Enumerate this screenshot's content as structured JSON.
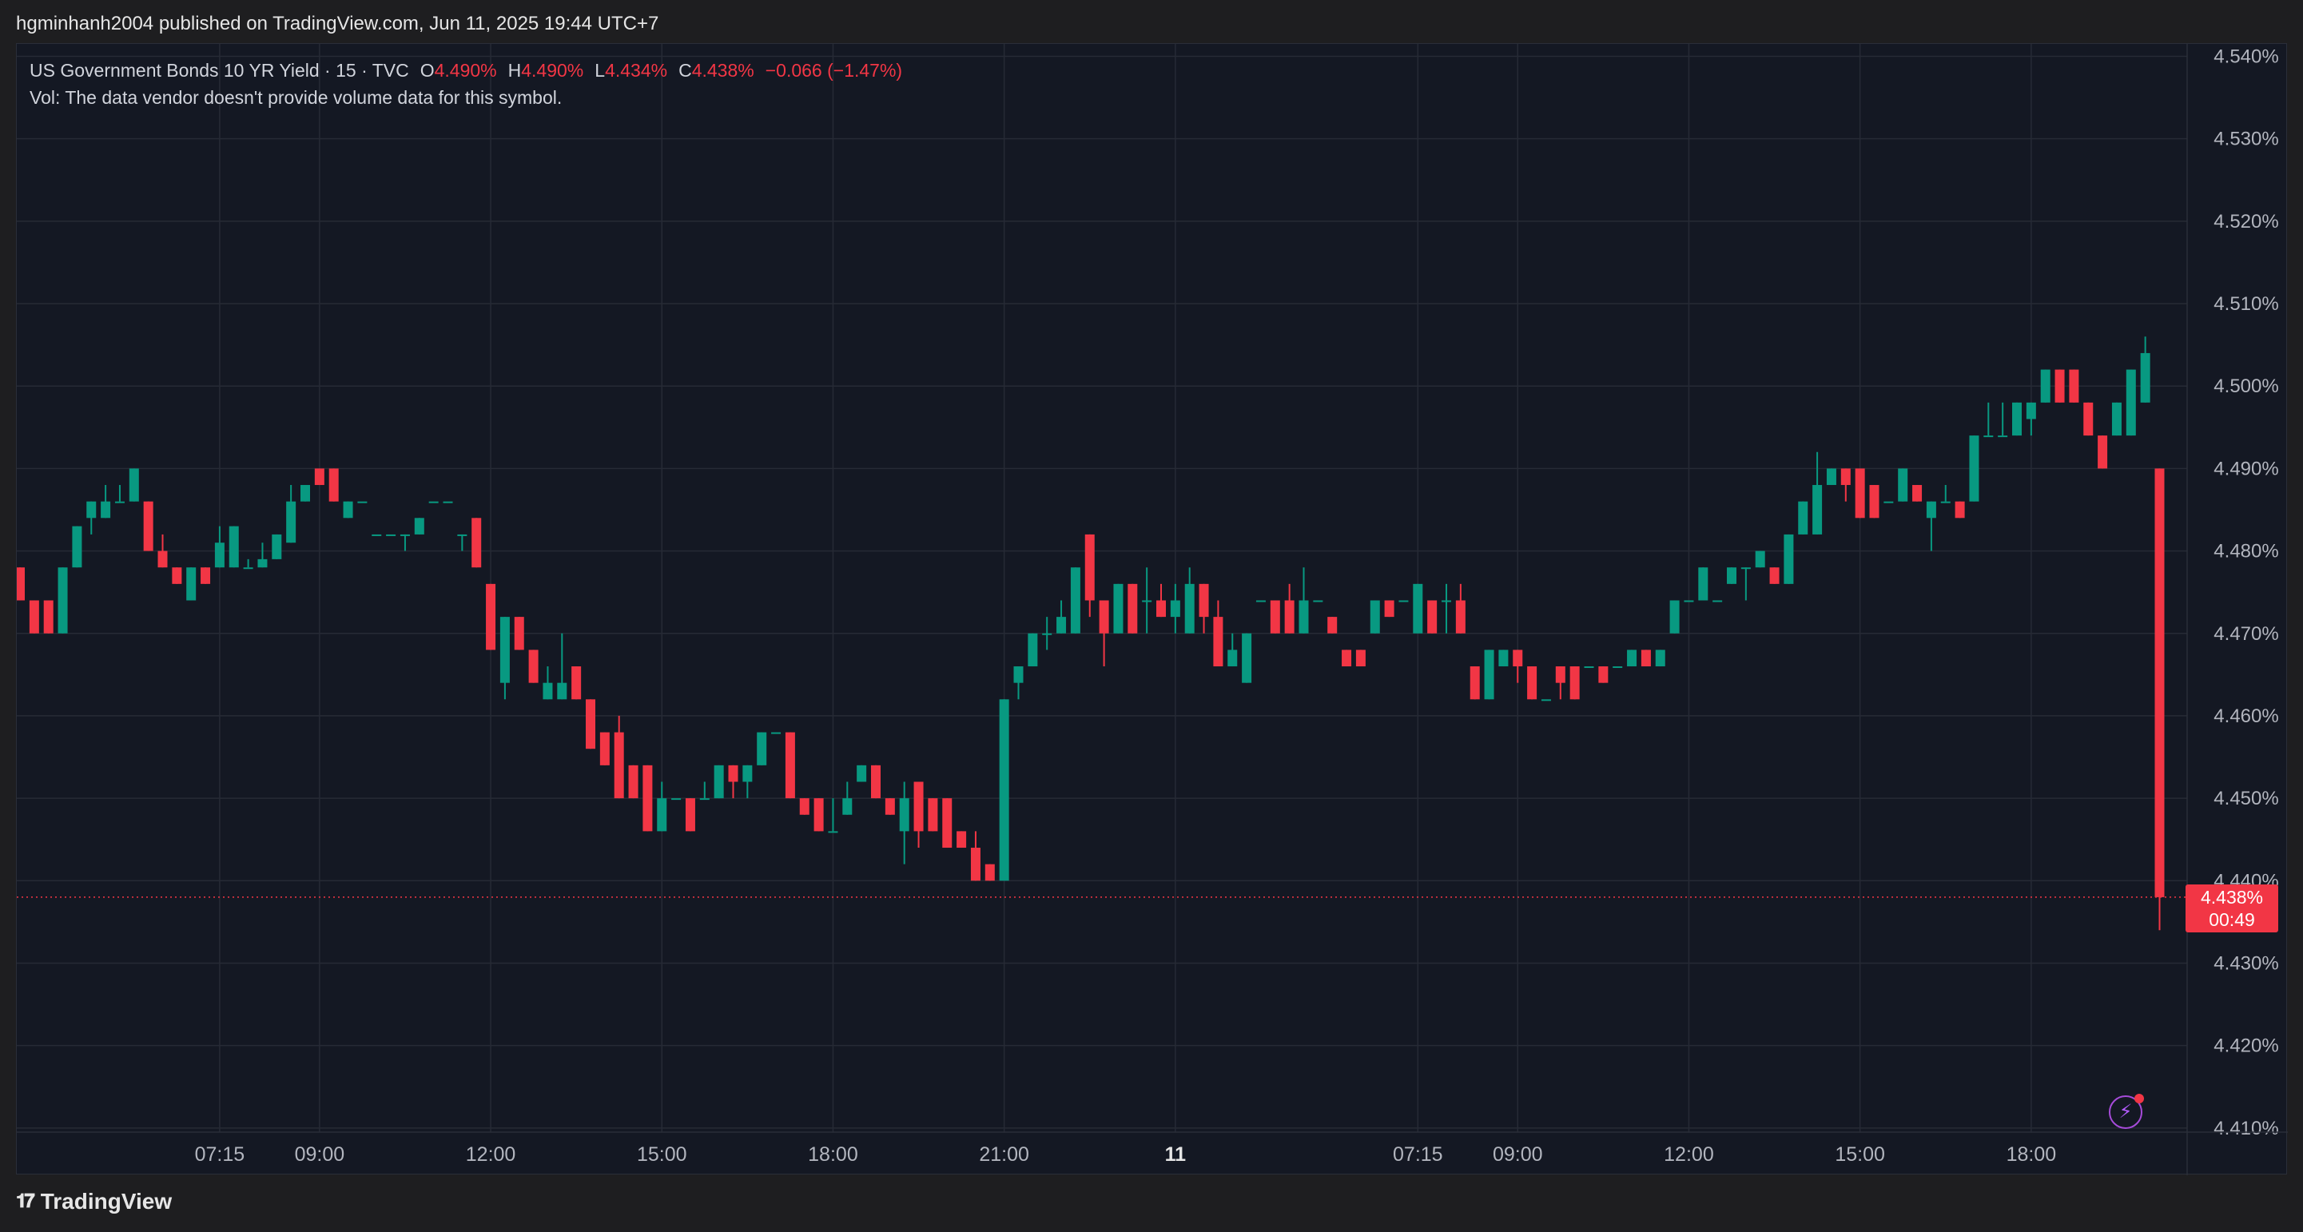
{
  "header": {
    "published": "hgminhanh2004 published on TradingView.com, Jun 11, 2025 19:44 UTC+7"
  },
  "legend": {
    "symbol": "US Government Bonds 10 YR Yield · 15 · TVC",
    "open_label": "O",
    "open": "4.490%",
    "high_label": "H",
    "high": "4.490%",
    "low_label": "L",
    "low": "4.434%",
    "close_label": "C",
    "close": "4.438%",
    "change": "−0.066 (−1.47%)",
    "vol_note": "Vol: The data vendor doesn't provide volume data for this symbol."
  },
  "last_price": {
    "value": "4.438%",
    "countdown": "00:49",
    "price": 4.438
  },
  "footer": {
    "brand": "TradingView"
  },
  "icons": {
    "bolt": "lightning-bolt-icon",
    "logo": "tradingview-logo-icon"
  },
  "colors": {
    "up": "#089981",
    "down": "#f23645",
    "grid": "#262a35",
    "background": "#141823",
    "axis_text": "#b2b5be"
  },
  "chart_data": {
    "type": "candlestick",
    "y_range": [
      4.4095,
      4.5415
    ],
    "y_ticks": [
      {
        "v": 4.54,
        "label": "4.540%"
      },
      {
        "v": 4.53,
        "label": "4.530%"
      },
      {
        "v": 4.52,
        "label": "4.520%"
      },
      {
        "v": 4.51,
        "label": "4.510%"
      },
      {
        "v": 4.5,
        "label": "4.500%"
      },
      {
        "v": 4.49,
        "label": "4.490%"
      },
      {
        "v": 4.48,
        "label": "4.480%"
      },
      {
        "v": 4.47,
        "label": "4.470%"
      },
      {
        "v": 4.46,
        "label": "4.460%"
      },
      {
        "v": 4.45,
        "label": "4.450%"
      },
      {
        "v": 4.44,
        "label": "4.440%"
      },
      {
        "v": 4.43,
        "label": "4.430%"
      },
      {
        "v": 4.42,
        "label": "4.420%"
      },
      {
        "v": 4.41,
        "label": "4.410%"
      }
    ],
    "x_ticks": [
      {
        "i": 14,
        "label": "07:15",
        "bold": false
      },
      {
        "i": 21,
        "label": "09:00",
        "bold": false
      },
      {
        "i": 33,
        "label": "12:00",
        "bold": false
      },
      {
        "i": 45,
        "label": "15:00",
        "bold": false
      },
      {
        "i": 57,
        "label": "18:00",
        "bold": false
      },
      {
        "i": 69,
        "label": "21:00",
        "bold": false
      },
      {
        "i": 81,
        "label": "11",
        "bold": true
      },
      {
        "i": 98,
        "label": "07:15",
        "bold": false
      },
      {
        "i": 105,
        "label": "09:00",
        "bold": false
      },
      {
        "i": 117,
        "label": "12:00",
        "bold": false
      },
      {
        "i": 129,
        "label": "15:00",
        "bold": false
      },
      {
        "i": 141,
        "label": "18:00",
        "bold": false
      }
    ],
    "candles": [
      {
        "o": 4.478,
        "h": 4.478,
        "l": 4.474,
        "c": 4.474
      },
      {
        "o": 4.474,
        "h": 4.474,
        "l": 4.47,
        "c": 4.47
      },
      {
        "o": 4.474,
        "h": 4.474,
        "l": 4.47,
        "c": 4.47
      },
      {
        "o": 4.47,
        "h": 4.478,
        "l": 4.47,
        "c": 4.478
      },
      {
        "o": 4.478,
        "h": 4.483,
        "l": 4.478,
        "c": 4.483
      },
      {
        "o": 4.484,
        "h": 4.486,
        "l": 4.482,
        "c": 4.486
      },
      {
        "o": 4.484,
        "h": 4.488,
        "l": 4.484,
        "c": 4.486
      },
      {
        "o": 4.486,
        "h": 4.488,
        "l": 4.486,
        "c": 4.486
      },
      {
        "o": 4.486,
        "h": 4.49,
        "l": 4.486,
        "c": 4.49
      },
      {
        "o": 4.486,
        "h": 4.486,
        "l": 4.48,
        "c": 4.48
      },
      {
        "o": 4.48,
        "h": 4.482,
        "l": 4.478,
        "c": 4.478
      },
      {
        "o": 4.478,
        "h": 4.478,
        "l": 4.476,
        "c": 4.476
      },
      {
        "o": 4.474,
        "h": 4.478,
        "l": 4.474,
        "c": 4.478
      },
      {
        "o": 4.478,
        "h": 4.478,
        "l": 4.476,
        "c": 4.476
      },
      {
        "o": 4.478,
        "h": 4.483,
        "l": 4.478,
        "c": 4.481
      },
      {
        "o": 4.478,
        "h": 4.483,
        "l": 4.478,
        "c": 4.483
      },
      {
        "o": 4.478,
        "h": 4.479,
        "l": 4.478,
        "c": 4.478
      },
      {
        "o": 4.478,
        "h": 4.481,
        "l": 4.478,
        "c": 4.479
      },
      {
        "o": 4.479,
        "h": 4.482,
        "l": 4.479,
        "c": 4.482
      },
      {
        "o": 4.481,
        "h": 4.488,
        "l": 4.481,
        "c": 4.486
      },
      {
        "o": 4.486,
        "h": 4.488,
        "l": 4.486,
        "c": 4.488
      },
      {
        "o": 4.49,
        "h": 4.49,
        "l": 4.488,
        "c": 4.488
      },
      {
        "o": 4.49,
        "h": 4.49,
        "l": 4.486,
        "c": 4.486
      },
      {
        "o": 4.484,
        "h": 4.486,
        "l": 4.484,
        "c": 4.486
      },
      {
        "o": 4.486,
        "h": 4.486,
        "l": 4.486,
        "c": 4.486
      },
      {
        "o": 4.482,
        "h": 4.482,
        "l": 4.482,
        "c": 4.482
      },
      {
        "o": 4.482,
        "h": 4.482,
        "l": 4.482,
        "c": 4.482
      },
      {
        "o": 4.482,
        "h": 4.482,
        "l": 4.48,
        "c": 4.482
      },
      {
        "o": 4.482,
        "h": 4.484,
        "l": 4.482,
        "c": 4.484
      },
      {
        "o": 4.486,
        "h": 4.486,
        "l": 4.486,
        "c": 4.486
      },
      {
        "o": 4.486,
        "h": 4.486,
        "l": 4.486,
        "c": 4.486
      },
      {
        "o": 4.482,
        "h": 4.482,
        "l": 4.48,
        "c": 4.482
      },
      {
        "o": 4.484,
        "h": 4.484,
        "l": 4.478,
        "c": 4.478
      },
      {
        "o": 4.476,
        "h": 4.476,
        "l": 4.468,
        "c": 4.468
      },
      {
        "o": 4.464,
        "h": 4.472,
        "l": 4.462,
        "c": 4.472
      },
      {
        "o": 4.472,
        "h": 4.472,
        "l": 4.468,
        "c": 4.468
      },
      {
        "o": 4.468,
        "h": 4.468,
        "l": 4.464,
        "c": 4.464
      },
      {
        "o": 4.462,
        "h": 4.466,
        "l": 4.462,
        "c": 4.464
      },
      {
        "o": 4.462,
        "h": 4.47,
        "l": 4.462,
        "c": 4.464
      },
      {
        "o": 4.466,
        "h": 4.466,
        "l": 4.462,
        "c": 4.462
      },
      {
        "o": 4.462,
        "h": 4.462,
        "l": 4.456,
        "c": 4.456
      },
      {
        "o": 4.458,
        "h": 4.458,
        "l": 4.454,
        "c": 4.454
      },
      {
        "o": 4.458,
        "h": 4.46,
        "l": 4.45,
        "c": 4.45
      },
      {
        "o": 4.454,
        "h": 4.454,
        "l": 4.45,
        "c": 4.45
      },
      {
        "o": 4.454,
        "h": 4.454,
        "l": 4.446,
        "c": 4.446
      },
      {
        "o": 4.446,
        "h": 4.452,
        "l": 4.446,
        "c": 4.45
      },
      {
        "o": 4.45,
        "h": 4.45,
        "l": 4.45,
        "c": 4.45
      },
      {
        "o": 4.45,
        "h": 4.45,
        "l": 4.446,
        "c": 4.446
      },
      {
        "o": 4.45,
        "h": 4.452,
        "l": 4.45,
        "c": 4.45
      },
      {
        "o": 4.45,
        "h": 4.454,
        "l": 4.45,
        "c": 4.454
      },
      {
        "o": 4.454,
        "h": 4.454,
        "l": 4.45,
        "c": 4.452
      },
      {
        "o": 4.452,
        "h": 4.454,
        "l": 4.45,
        "c": 4.454
      },
      {
        "o": 4.454,
        "h": 4.458,
        "l": 4.454,
        "c": 4.458
      },
      {
        "o": 4.458,
        "h": 4.458,
        "l": 4.458,
        "c": 4.458
      },
      {
        "o": 4.458,
        "h": 4.458,
        "l": 4.45,
        "c": 4.45
      },
      {
        "o": 4.45,
        "h": 4.45,
        "l": 4.448,
        "c": 4.448
      },
      {
        "o": 4.45,
        "h": 4.45,
        "l": 4.446,
        "c": 4.446
      },
      {
        "o": 4.446,
        "h": 4.45,
        "l": 4.446,
        "c": 4.446
      },
      {
        "o": 4.448,
        "h": 4.452,
        "l": 4.448,
        "c": 4.45
      },
      {
        "o": 4.452,
        "h": 4.454,
        "l": 4.452,
        "c": 4.454
      },
      {
        "o": 4.454,
        "h": 4.454,
        "l": 4.45,
        "c": 4.45
      },
      {
        "o": 4.45,
        "h": 4.45,
        "l": 4.448,
        "c": 4.448
      },
      {
        "o": 4.446,
        "h": 4.452,
        "l": 4.442,
        "c": 4.45
      },
      {
        "o": 4.452,
        "h": 4.452,
        "l": 4.444,
        "c": 4.446
      },
      {
        "o": 4.45,
        "h": 4.45,
        "l": 4.446,
        "c": 4.446
      },
      {
        "o": 4.45,
        "h": 4.45,
        "l": 4.444,
        "c": 4.444
      },
      {
        "o": 4.446,
        "h": 4.446,
        "l": 4.444,
        "c": 4.444
      },
      {
        "o": 4.444,
        "h": 4.446,
        "l": 4.44,
        "c": 4.44
      },
      {
        "o": 4.442,
        "h": 4.442,
        "l": 4.44,
        "c": 4.44
      },
      {
        "o": 4.44,
        "h": 4.462,
        "l": 4.44,
        "c": 4.462
      },
      {
        "o": 4.464,
        "h": 4.466,
        "l": 4.462,
        "c": 4.466
      },
      {
        "o": 4.466,
        "h": 4.47,
        "l": 4.466,
        "c": 4.47
      },
      {
        "o": 4.47,
        "h": 4.472,
        "l": 4.468,
        "c": 4.47
      },
      {
        "o": 4.47,
        "h": 4.474,
        "l": 4.47,
        "c": 4.472
      },
      {
        "o": 4.47,
        "h": 4.478,
        "l": 4.47,
        "c": 4.478
      },
      {
        "o": 4.482,
        "h": 4.482,
        "l": 4.472,
        "c": 4.474
      },
      {
        "o": 4.474,
        "h": 4.474,
        "l": 4.466,
        "c": 4.47
      },
      {
        "o": 4.47,
        "h": 4.476,
        "l": 4.47,
        "c": 4.476
      },
      {
        "o": 4.476,
        "h": 4.476,
        "l": 4.47,
        "c": 4.47
      },
      {
        "o": 4.474,
        "h": 4.478,
        "l": 4.47,
        "c": 4.474
      },
      {
        "o": 4.474,
        "h": 4.476,
        "l": 4.472,
        "c": 4.472
      },
      {
        "o": 4.472,
        "h": 4.476,
        "l": 4.47,
        "c": 4.474
      },
      {
        "o": 4.47,
        "h": 4.478,
        "l": 4.47,
        "c": 4.476
      },
      {
        "o": 4.476,
        "h": 4.476,
        "l": 4.47,
        "c": 4.472
      },
      {
        "o": 4.472,
        "h": 4.474,
        "l": 4.466,
        "c": 4.466
      },
      {
        "o": 4.466,
        "h": 4.47,
        "l": 4.466,
        "c": 4.468
      },
      {
        "o": 4.464,
        "h": 4.47,
        "l": 4.464,
        "c": 4.47
      },
      {
        "o": 4.474,
        "h": 4.474,
        "l": 4.474,
        "c": 4.474
      },
      {
        "o": 4.474,
        "h": 4.474,
        "l": 4.47,
        "c": 4.47
      },
      {
        "o": 4.474,
        "h": 4.476,
        "l": 4.47,
        "c": 4.47
      },
      {
        "o": 4.47,
        "h": 4.478,
        "l": 4.47,
        "c": 4.474
      },
      {
        "o": 4.474,
        "h": 4.474,
        "l": 4.474,
        "c": 4.474
      },
      {
        "o": 4.472,
        "h": 4.472,
        "l": 4.47,
        "c": 4.47
      },
      {
        "o": 4.468,
        "h": 4.468,
        "l": 4.466,
        "c": 4.466
      },
      {
        "o": 4.468,
        "h": 4.468,
        "l": 4.466,
        "c": 4.466
      },
      {
        "o": 4.47,
        "h": 4.474,
        "l": 4.47,
        "c": 4.474
      },
      {
        "o": 4.474,
        "h": 4.474,
        "l": 4.472,
        "c": 4.472
      },
      {
        "o": 4.474,
        "h": 4.474,
        "l": 4.474,
        "c": 4.474
      },
      {
        "o": 4.47,
        "h": 4.476,
        "l": 4.47,
        "c": 4.476
      },
      {
        "o": 4.474,
        "h": 4.474,
        "l": 4.47,
        "c": 4.47
      },
      {
        "o": 4.474,
        "h": 4.476,
        "l": 4.47,
        "c": 4.474
      },
      {
        "o": 4.474,
        "h": 4.476,
        "l": 4.47,
        "c": 4.47
      },
      {
        "o": 4.466,
        "h": 4.466,
        "l": 4.462,
        "c": 4.462
      },
      {
        "o": 4.462,
        "h": 4.468,
        "l": 4.462,
        "c": 4.468
      },
      {
        "o": 4.466,
        "h": 4.468,
        "l": 4.466,
        "c": 4.468
      },
      {
        "o": 4.468,
        "h": 4.468,
        "l": 4.464,
        "c": 4.466
      },
      {
        "o": 4.466,
        "h": 4.466,
        "l": 4.462,
        "c": 4.462
      },
      {
        "o": 4.462,
        "h": 4.462,
        "l": 4.462,
        "c": 4.462
      },
      {
        "o": 4.466,
        "h": 4.466,
        "l": 4.462,
        "c": 4.464
      },
      {
        "o": 4.466,
        "h": 4.466,
        "l": 4.462,
        "c": 4.462
      },
      {
        "o": 4.466,
        "h": 4.466,
        "l": 4.466,
        "c": 4.466
      },
      {
        "o": 4.466,
        "h": 4.466,
        "l": 4.464,
        "c": 4.464
      },
      {
        "o": 4.466,
        "h": 4.466,
        "l": 4.466,
        "c": 4.466
      },
      {
        "o": 4.466,
        "h": 4.468,
        "l": 4.466,
        "c": 4.468
      },
      {
        "o": 4.468,
        "h": 4.468,
        "l": 4.466,
        "c": 4.466
      },
      {
        "o": 4.466,
        "h": 4.468,
        "l": 4.466,
        "c": 4.468
      },
      {
        "o": 4.47,
        "h": 4.474,
        "l": 4.47,
        "c": 4.474
      },
      {
        "o": 4.474,
        "h": 4.474,
        "l": 4.474,
        "c": 4.474
      },
      {
        "o": 4.474,
        "h": 4.478,
        "l": 4.474,
        "c": 4.478
      },
      {
        "o": 4.474,
        "h": 4.474,
        "l": 4.474,
        "c": 4.474
      },
      {
        "o": 4.476,
        "h": 4.478,
        "l": 4.476,
        "c": 4.478
      },
      {
        "o": 4.478,
        "h": 4.478,
        "l": 4.474,
        "c": 4.478
      },
      {
        "o": 4.478,
        "h": 4.48,
        "l": 4.478,
        "c": 4.48
      },
      {
        "o": 4.478,
        "h": 4.478,
        "l": 4.476,
        "c": 4.476
      },
      {
        "o": 4.476,
        "h": 4.482,
        "l": 4.476,
        "c": 4.482
      },
      {
        "o": 4.482,
        "h": 4.486,
        "l": 4.482,
        "c": 4.486
      },
      {
        "o": 4.482,
        "h": 4.492,
        "l": 4.482,
        "c": 4.488
      },
      {
        "o": 4.488,
        "h": 4.49,
        "l": 4.488,
        "c": 4.49
      },
      {
        "o": 4.49,
        "h": 4.49,
        "l": 4.486,
        "c": 4.488
      },
      {
        "o": 4.49,
        "h": 4.49,
        "l": 4.484,
        "c": 4.484
      },
      {
        "o": 4.488,
        "h": 4.488,
        "l": 4.484,
        "c": 4.484
      },
      {
        "o": 4.486,
        "h": 4.486,
        "l": 4.486,
        "c": 4.486
      },
      {
        "o": 4.486,
        "h": 4.49,
        "l": 4.486,
        "c": 4.49
      },
      {
        "o": 4.488,
        "h": 4.488,
        "l": 4.486,
        "c": 4.486
      },
      {
        "o": 4.484,
        "h": 4.486,
        "l": 4.48,
        "c": 4.486
      },
      {
        "o": 4.486,
        "h": 4.488,
        "l": 4.486,
        "c": 4.486
      },
      {
        "o": 4.486,
        "h": 4.486,
        "l": 4.484,
        "c": 4.484
      },
      {
        "o": 4.486,
        "h": 4.494,
        "l": 4.486,
        "c": 4.494
      },
      {
        "o": 4.494,
        "h": 4.498,
        "l": 4.494,
        "c": 4.494
      },
      {
        "o": 4.494,
        "h": 4.498,
        "l": 4.494,
        "c": 4.494
      },
      {
        "o": 4.494,
        "h": 4.498,
        "l": 4.494,
        "c": 4.498
      },
      {
        "o": 4.496,
        "h": 4.498,
        "l": 4.494,
        "c": 4.498
      },
      {
        "o": 4.498,
        "h": 4.502,
        "l": 4.498,
        "c": 4.502
      },
      {
        "o": 4.502,
        "h": 4.502,
        "l": 4.498,
        "c": 4.498
      },
      {
        "o": 4.502,
        "h": 4.502,
        "l": 4.498,
        "c": 4.498
      },
      {
        "o": 4.498,
        "h": 4.498,
        "l": 4.494,
        "c": 4.494
      },
      {
        "o": 4.494,
        "h": 4.494,
        "l": 4.49,
        "c": 4.49
      },
      {
        "o": 4.494,
        "h": 4.498,
        "l": 4.494,
        "c": 4.498
      },
      {
        "o": 4.494,
        "h": 4.502,
        "l": 4.494,
        "c": 4.502
      },
      {
        "o": 4.498,
        "h": 4.506,
        "l": 4.498,
        "c": 4.504
      },
      {
        "o": 4.49,
        "h": 4.49,
        "l": 4.434,
        "c": 4.438
      }
    ]
  }
}
